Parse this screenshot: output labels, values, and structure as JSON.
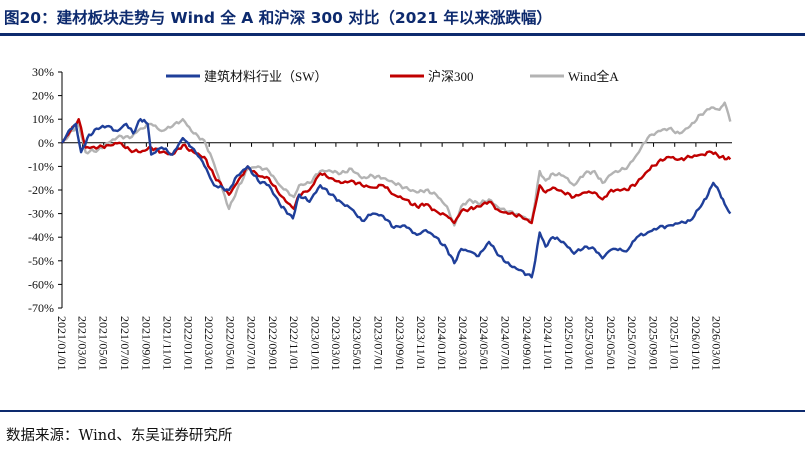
{
  "figure": {
    "title": "图20：建材板块走势与 Wind 全 A 和沪深 300 对比（2021 年以来涨跌幅）",
    "source": "数据来源：Wind、东吴证券研究所"
  },
  "colors": {
    "title": "#0d2a6e",
    "building_materials": "#1f3f9a",
    "csi300": "#c00000",
    "wind_all_a": "#b3b3b3"
  },
  "chart_data": {
    "type": "line",
    "ylim": [
      -70,
      30
    ],
    "y_ticks": [
      "30%",
      "20%",
      "10%",
      "0%",
      "-10%",
      "-20%",
      "-30%",
      "-40%",
      "-50%",
      "-60%",
      "-70%"
    ],
    "x_range": [
      "2021-01-01",
      "2026-04-15"
    ],
    "x_ticks": [
      "2021/01/01",
      "2021/03/01",
      "2021/05/01",
      "2021/07/01",
      "2021/09/01",
      "2021/11/01",
      "2022/01/01",
      "2022/03/01",
      "2022/05/01",
      "2022/07/01",
      "2022/09/01",
      "2022/11/01",
      "2023/01/01",
      "2023/03/01",
      "2023/05/01",
      "2023/07/01",
      "2023/09/01",
      "2023/11/01",
      "2024/01/01",
      "2024/03/01",
      "2024/05/01",
      "2024/07/01",
      "2024/09/01",
      "2024/11/01",
      "2025/01/01",
      "2025/03/01",
      "2025/05/01",
      "2025/07/01",
      "2025/09/01",
      "2025/11/01",
      "2026/01/01",
      "2026/03/01"
    ],
    "legend_position": "top",
    "grid": false,
    "series": [
      {
        "name": "建筑材料行业（SW）",
        "color": "#1f3f9a",
        "points": [
          [
            "2021-01-01",
            0
          ],
          [
            "2021-01-20",
            5
          ],
          [
            "2021-02-10",
            8
          ],
          [
            "2021-02-25",
            -4
          ],
          [
            "2021-03-15",
            2
          ],
          [
            "2021-04-10",
            6
          ],
          [
            "2021-05-10",
            7
          ],
          [
            "2021-06-10",
            5
          ],
          [
            "2021-07-05",
            8
          ],
          [
            "2021-07-25",
            4
          ],
          [
            "2021-08-15",
            10
          ],
          [
            "2021-09-05",
            8
          ],
          [
            "2021-09-15",
            -5
          ],
          [
            "2021-10-15",
            -2
          ],
          [
            "2021-11-15",
            -5
          ],
          [
            "2021-12-15",
            2
          ],
          [
            "2022-01-10",
            -2
          ],
          [
            "2022-02-10",
            -8
          ],
          [
            "2022-03-15",
            -18
          ],
          [
            "2022-04-27",
            -20
          ],
          [
            "2022-05-20",
            -14
          ],
          [
            "2022-06-20",
            -10
          ],
          [
            "2022-07-20",
            -16
          ],
          [
            "2022-08-20",
            -18
          ],
          [
            "2022-09-20",
            -26
          ],
          [
            "2022-10-28",
            -32
          ],
          [
            "2022-11-15",
            -22
          ],
          [
            "2022-12-15",
            -25
          ],
          [
            "2023-01-15",
            -18
          ],
          [
            "2023-02-15",
            -22
          ],
          [
            "2023-03-15",
            -25
          ],
          [
            "2023-04-15",
            -28
          ],
          [
            "2023-05-15",
            -33
          ],
          [
            "2023-06-15",
            -30
          ],
          [
            "2023-07-15",
            -31
          ],
          [
            "2023-08-15",
            -36
          ],
          [
            "2023-09-15",
            -35
          ],
          [
            "2023-10-20",
            -39
          ],
          [
            "2023-11-15",
            -37
          ],
          [
            "2023-12-15",
            -40
          ],
          [
            "2024-01-15",
            -45
          ],
          [
            "2024-02-05",
            -51
          ],
          [
            "2024-02-25",
            -45
          ],
          [
            "2024-03-20",
            -46
          ],
          [
            "2024-04-15",
            -48
          ],
          [
            "2024-05-15",
            -42
          ],
          [
            "2024-06-15",
            -48
          ],
          [
            "2024-07-15",
            -52
          ],
          [
            "2024-08-15",
            -54
          ],
          [
            "2024-09-15",
            -57
          ],
          [
            "2024-09-25",
            -50
          ],
          [
            "2024-10-08",
            -38
          ],
          [
            "2024-10-25",
            -44
          ],
          [
            "2024-11-15",
            -40
          ],
          [
            "2024-12-15",
            -42
          ],
          [
            "2025-01-15",
            -47
          ],
          [
            "2025-02-15",
            -44
          ],
          [
            "2025-03-15",
            -45
          ],
          [
            "2025-04-07",
            -49
          ],
          [
            "2025-04-25",
            -46
          ],
          [
            "2025-05-15",
            -45
          ],
          [
            "2025-06-15",
            -46
          ],
          [
            "2025-07-15",
            -40
          ],
          [
            "2025-08-15",
            -38
          ],
          [
            "2025-09-15",
            -36
          ],
          [
            "2025-10-15",
            -35
          ],
          [
            "2025-11-15",
            -34
          ],
          [
            "2025-12-15",
            -33
          ],
          [
            "2026-01-15",
            -27
          ],
          [
            "2026-02-05",
            -22
          ],
          [
            "2026-02-20",
            -17
          ],
          [
            "2026-03-10",
            -21
          ],
          [
            "2026-03-25",
            -26
          ],
          [
            "2026-04-10",
            -30
          ]
        ]
      },
      {
        "name": "沪深300",
        "color": "#c00000",
        "points": [
          [
            "2021-01-01",
            0
          ],
          [
            "2021-02-18",
            10
          ],
          [
            "2021-03-10",
            -2
          ],
          [
            "2021-04-15",
            -2
          ],
          [
            "2021-05-15",
            -1
          ],
          [
            "2021-06-15",
            0
          ],
          [
            "2021-07-15",
            -3
          ],
          [
            "2021-08-15",
            -4
          ],
          [
            "2021-09-15",
            -2
          ],
          [
            "2021-10-15",
            -4
          ],
          [
            "2021-11-15",
            -5
          ],
          [
            "2021-12-15",
            -1
          ],
          [
            "2022-01-15",
            -4
          ],
          [
            "2022-02-15",
            -6
          ],
          [
            "2022-03-15",
            -14
          ],
          [
            "2022-04-27",
            -22
          ],
          [
            "2022-05-20",
            -17
          ],
          [
            "2022-06-20",
            -10
          ],
          [
            "2022-07-20",
            -14
          ],
          [
            "2022-08-20",
            -15
          ],
          [
            "2022-09-20",
            -22
          ],
          [
            "2022-10-31",
            -28
          ],
          [
            "2022-11-15",
            -22
          ],
          [
            "2022-12-15",
            -20
          ],
          [
            "2023-01-15",
            -13
          ],
          [
            "2023-02-15",
            -15
          ],
          [
            "2023-03-15",
            -17
          ],
          [
            "2023-04-15",
            -16
          ],
          [
            "2023-05-15",
            -18
          ],
          [
            "2023-06-15",
            -19
          ],
          [
            "2023-07-15",
            -18
          ],
          [
            "2023-08-15",
            -22
          ],
          [
            "2023-09-15",
            -24
          ],
          [
            "2023-10-20",
            -27
          ],
          [
            "2023-11-15",
            -26
          ],
          [
            "2023-12-15",
            -29
          ],
          [
            "2024-01-15",
            -31
          ],
          [
            "2024-02-05",
            -34
          ],
          [
            "2024-02-25",
            -29
          ],
          [
            "2024-03-20",
            -28
          ],
          [
            "2024-04-15",
            -27
          ],
          [
            "2024-05-15",
            -25
          ],
          [
            "2024-06-15",
            -29
          ],
          [
            "2024-07-15",
            -30
          ],
          [
            "2024-08-15",
            -31
          ],
          [
            "2024-09-15",
            -34
          ],
          [
            "2024-09-25",
            -27
          ],
          [
            "2024-10-08",
            -18
          ],
          [
            "2024-10-25",
            -21
          ],
          [
            "2024-11-15",
            -19
          ],
          [
            "2024-12-15",
            -21
          ],
          [
            "2025-01-15",
            -23
          ],
          [
            "2025-02-15",
            -21
          ],
          [
            "2025-03-15",
            -21
          ],
          [
            "2025-04-07",
            -24
          ],
          [
            "2025-04-25",
            -21
          ],
          [
            "2025-05-15",
            -20
          ],
          [
            "2025-06-15",
            -20
          ],
          [
            "2025-07-15",
            -17
          ],
          [
            "2025-08-15",
            -12
          ],
          [
            "2025-09-15",
            -8
          ],
          [
            "2025-10-15",
            -6
          ],
          [
            "2025-11-15",
            -7
          ],
          [
            "2025-12-15",
            -6
          ],
          [
            "2026-01-15",
            -5
          ],
          [
            "2026-02-15",
            -4
          ],
          [
            "2026-03-15",
            -6
          ],
          [
            "2026-04-10",
            -7
          ]
        ]
      },
      {
        "name": "Wind全A",
        "color": "#b3b3b3",
        "points": [
          [
            "2021-01-01",
            0
          ],
          [
            "2021-02-18",
            8
          ],
          [
            "2021-03-10",
            -4
          ],
          [
            "2021-04-15",
            -3
          ],
          [
            "2021-05-15",
            0
          ],
          [
            "2021-06-15",
            3
          ],
          [
            "2021-07-15",
            2
          ],
          [
            "2021-08-15",
            6
          ],
          [
            "2021-09-15",
            8
          ],
          [
            "2021-10-15",
            5
          ],
          [
            "2021-11-15",
            7
          ],
          [
            "2021-12-15",
            10
          ],
          [
            "2022-01-15",
            4
          ],
          [
            "2022-02-15",
            1
          ],
          [
            "2022-03-15",
            -9
          ],
          [
            "2022-04-27",
            -28
          ],
          [
            "2022-05-20",
            -20
          ],
          [
            "2022-06-20",
            -11
          ],
          [
            "2022-07-20",
            -10
          ],
          [
            "2022-08-20",
            -12
          ],
          [
            "2022-09-20",
            -18
          ],
          [
            "2022-10-31",
            -23
          ],
          [
            "2022-11-15",
            -18
          ],
          [
            "2022-12-15",
            -17
          ],
          [
            "2023-01-15",
            -12
          ],
          [
            "2023-02-15",
            -12
          ],
          [
            "2023-03-15",
            -13
          ],
          [
            "2023-04-15",
            -11
          ],
          [
            "2023-05-15",
            -15
          ],
          [
            "2023-06-15",
            -14
          ],
          [
            "2023-07-15",
            -15
          ],
          [
            "2023-08-15",
            -17
          ],
          [
            "2023-09-15",
            -19
          ],
          [
            "2023-10-20",
            -21
          ],
          [
            "2023-11-15",
            -20
          ],
          [
            "2023-12-15",
            -22
          ],
          [
            "2024-01-15",
            -27
          ],
          [
            "2024-02-05",
            -35
          ],
          [
            "2024-02-25",
            -27
          ],
          [
            "2024-03-20",
            -24
          ],
          [
            "2024-04-15",
            -26
          ],
          [
            "2024-05-15",
            -24
          ],
          [
            "2024-06-15",
            -28
          ],
          [
            "2024-07-15",
            -29
          ],
          [
            "2024-08-15",
            -31
          ],
          [
            "2024-09-15",
            -33
          ],
          [
            "2024-09-25",
            -25
          ],
          [
            "2024-10-08",
            -12
          ],
          [
            "2024-10-25",
            -16
          ],
          [
            "2024-11-15",
            -13
          ],
          [
            "2024-12-15",
            -14
          ],
          [
            "2025-01-15",
            -18
          ],
          [
            "2025-02-15",
            -13
          ],
          [
            "2025-03-15",
            -12
          ],
          [
            "2025-04-07",
            -17
          ],
          [
            "2025-04-25",
            -14
          ],
          [
            "2025-05-15",
            -12
          ],
          [
            "2025-06-15",
            -11
          ],
          [
            "2025-07-15",
            -5
          ],
          [
            "2025-08-15",
            2
          ],
          [
            "2025-09-15",
            5
          ],
          [
            "2025-10-15",
            6
          ],
          [
            "2025-11-15",
            4
          ],
          [
            "2025-12-15",
            7
          ],
          [
            "2026-01-15",
            12
          ],
          [
            "2026-02-15",
            15
          ],
          [
            "2026-03-10",
            14
          ],
          [
            "2026-03-25",
            17
          ],
          [
            "2026-04-10",
            9
          ]
        ]
      }
    ]
  }
}
